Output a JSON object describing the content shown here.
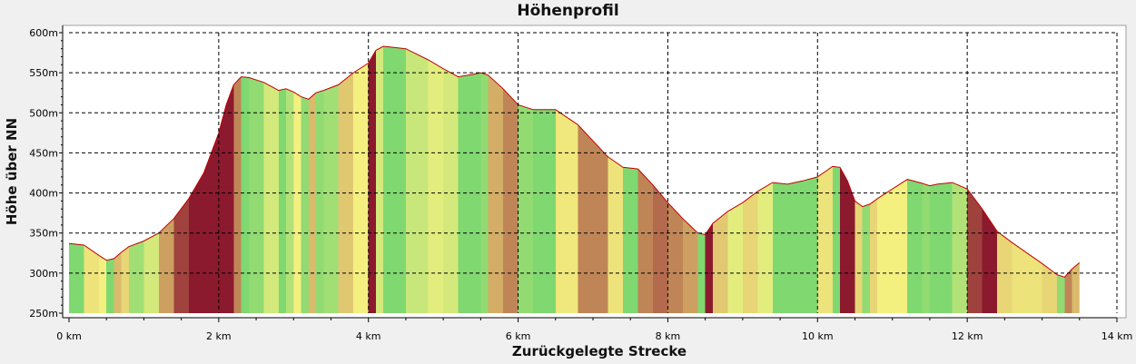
{
  "chart_data": {
    "type": "area",
    "title": "Höhenprofil",
    "xlabel": "Zurückgelegte Strecke",
    "ylabel": "Höhe über NN",
    "xlim": [
      0,
      14
    ],
    "ylim": [
      250,
      600
    ],
    "x_ticks": [
      0,
      2,
      4,
      6,
      8,
      10,
      12,
      14
    ],
    "x_tick_labels": [
      "0 km",
      "2 km",
      "4 km",
      "6 km",
      "8 km",
      "10 km",
      "12 km",
      "14 km"
    ],
    "y_ticks": [
      250,
      300,
      350,
      400,
      450,
      500,
      550,
      600
    ],
    "y_tick_labels": [
      "250m",
      "300m",
      "350m",
      "400m",
      "450m",
      "500m",
      "550m",
      "600m"
    ],
    "grid": true,
    "grid_style": "dashed",
    "colors": {
      "flat": "#80d870",
      "moderate": "#f4f080",
      "steep": "#8c1a2e",
      "outline": "#c00000",
      "plot_bg": "#ffffff"
    },
    "series": [
      {
        "x": [
          0.0,
          0.2,
          0.4,
          0.5,
          0.6,
          0.7,
          0.8,
          1.0,
          1.2,
          1.4,
          1.6,
          1.8,
          2.0,
          2.1,
          2.2,
          2.3,
          2.4,
          2.6,
          2.8,
          2.9,
          3.0,
          3.1,
          3.2,
          3.3,
          3.4,
          3.6,
          3.8,
          4.0,
          4.1,
          4.2,
          4.3,
          4.5,
          4.8,
          5.0,
          5.2,
          5.4,
          5.5,
          5.6,
          5.8,
          6.0,
          6.2,
          6.5,
          6.8,
          7.0,
          7.2,
          7.4,
          7.6,
          7.8,
          8.0,
          8.2,
          8.4,
          8.5,
          8.6,
          8.8,
          9.0,
          9.2,
          9.4,
          9.6,
          9.8,
          10.0,
          10.2,
          10.3,
          10.4,
          10.5,
          10.6,
          10.7,
          10.8,
          11.0,
          11.2,
          11.4,
          11.5,
          11.6,
          11.8,
          12.0,
          12.2,
          12.4,
          12.6,
          12.8,
          13.0,
          13.2,
          13.3,
          13.4,
          13.5
        ],
        "y": [
          337,
          335,
          322,
          316,
          318,
          326,
          333,
          340,
          350,
          368,
          393,
          425,
          475,
          510,
          535,
          545,
          544,
          538,
          528,
          530,
          526,
          520,
          517,
          525,
          528,
          535,
          550,
          562,
          578,
          583,
          582,
          580,
          566,
          555,
          545,
          548,
          550,
          547,
          530,
          510,
          504,
          504,
          485,
          465,
          445,
          432,
          430,
          410,
          388,
          368,
          350,
          348,
          362,
          377,
          388,
          402,
          413,
          411,
          415,
          420,
          433,
          432,
          415,
          390,
          383,
          386,
          393,
          405,
          417,
          412,
          409,
          411,
          413,
          405,
          380,
          352,
          338,
          325,
          312,
          298,
          295,
          305,
          313
        ]
      }
    ]
  }
}
